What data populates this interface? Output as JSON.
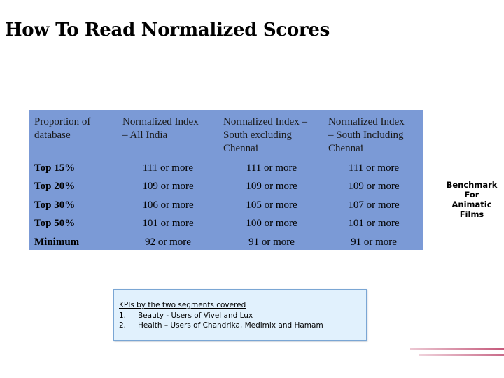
{
  "slide": {
    "title": "How To Read Normalized Scores"
  },
  "table": {
    "headers": [
      [
        "Proportion of",
        "database"
      ],
      [
        "Normalized Index",
        "– All India"
      ],
      [
        "Normalized Index –",
        "South excluding",
        "Chennai"
      ],
      [
        "Normalized Index",
        "– South Including",
        "Chennai"
      ]
    ],
    "rows": [
      {
        "label": "Top 15%",
        "values": [
          "111 or more",
          "111 or more",
          "111 or more"
        ]
      },
      {
        "label": "Top 20%",
        "values": [
          "109 or more",
          "109 or more",
          "109 or more"
        ]
      },
      {
        "label": "Top 30%",
        "values": [
          "106 or more",
          "105 or more",
          "107 or more"
        ]
      },
      {
        "label": "Top 50%",
        "values": [
          "101 or more",
          "100 or more",
          "101 or more"
        ]
      },
      {
        "label": "Minimum",
        "values": [
          "92 or more",
          "91 or more",
          "91 or more"
        ]
      }
    ]
  },
  "kpi_note": {
    "title": "KPIs by the two segments covered",
    "items": [
      {
        "num": "1.",
        "text": "Beauty - Users of Vivel and Lux"
      },
      {
        "num": "2.",
        "text": "Health – Users of Chandrika, Medimix and Hamam"
      }
    ]
  },
  "benchmark": {
    "lines": [
      "Benchmark",
      "For",
      "Animatic",
      "Films"
    ]
  },
  "colors": {
    "table_background": "#7b9ad6",
    "note_background": "#e1f1fd",
    "note_border": "#7aa6d4"
  }
}
